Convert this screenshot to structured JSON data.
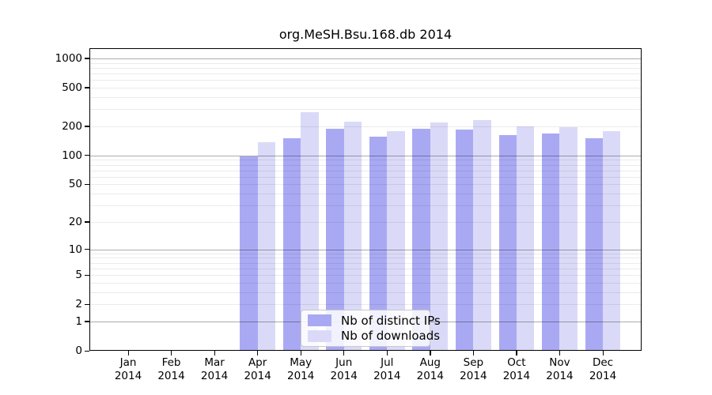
{
  "chart_data": {
    "type": "bar",
    "title": "org.MeSH.Bsu.168.db 2014",
    "year": "2014",
    "categories": [
      "Jan",
      "Feb",
      "Mar",
      "Apr",
      "May",
      "Jun",
      "Jul",
      "Aug",
      "Sep",
      "Oct",
      "Nov",
      "Dec"
    ],
    "series": [
      {
        "name": "Nb of distinct IPs",
        "color": "#a9a9f3",
        "values": [
          0,
          0,
          0,
          98,
          152,
          189,
          156,
          187,
          184,
          161,
          167,
          150
        ]
      },
      {
        "name": "Nb of downloads",
        "color": "#dadaf8",
        "values": [
          0,
          0,
          0,
          137,
          282,
          225,
          177,
          220,
          232,
          200,
          197,
          180
        ]
      }
    ],
    "xlabel": "",
    "ylabel": "",
    "y_scale": "log1p",
    "y_tick_labels": [
      "0",
      "1",
      "2",
      "5",
      "10",
      "20",
      "50",
      "100",
      "200",
      "500",
      "1000"
    ],
    "y_ticks": [
      0,
      1,
      2,
      5,
      10,
      20,
      50,
      100,
      200,
      500,
      1000
    ],
    "minor_gridlines": [
      2,
      3,
      4,
      5,
      6,
      7,
      8,
      9,
      20,
      30,
      40,
      50,
      60,
      70,
      80,
      90,
      200,
      300,
      400,
      500,
      600,
      700,
      800,
      900
    ],
    "major_gridlines": [
      1,
      10,
      100,
      1000
    ],
    "ylim": [
      0,
      1272
    ],
    "grid": true,
    "legend_position": "bottom-center"
  },
  "colors": {
    "bar_distinct_ips": "#a9a9f3",
    "bar_downloads": "#dadaf8",
    "plot_border": "#000000",
    "background": "#ffffff"
  }
}
